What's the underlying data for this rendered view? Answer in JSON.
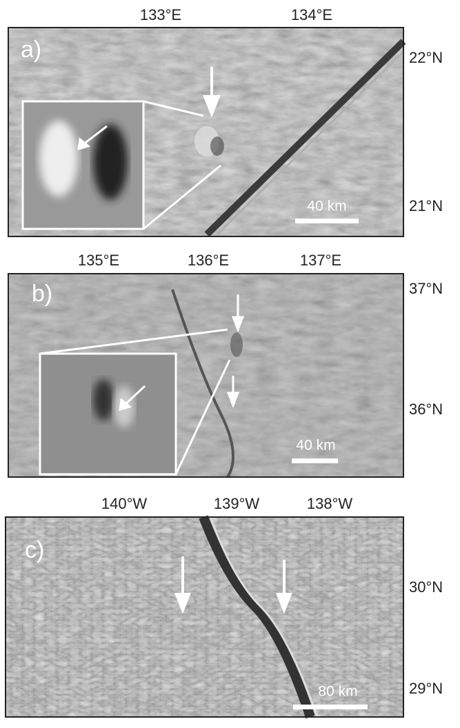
{
  "panels": [
    {
      "label": "a)",
      "lon_labels": [
        "133°E",
        "134°E"
      ],
      "lat_labels": [
        "22°N",
        "21°N"
      ],
      "scale": "40 km"
    },
    {
      "label": "b)",
      "lon_labels": [
        "135°E",
        "136°E",
        "137°E"
      ],
      "lat_labels": [
        "37°N",
        "36°N"
      ],
      "scale": "40 km"
    },
    {
      "label": "c)",
      "lon_labels": [
        "140°W",
        "139°W",
        "138°W"
      ],
      "lat_labels": [
        "30°N",
        "29°N"
      ],
      "scale": "80 km"
    }
  ]
}
